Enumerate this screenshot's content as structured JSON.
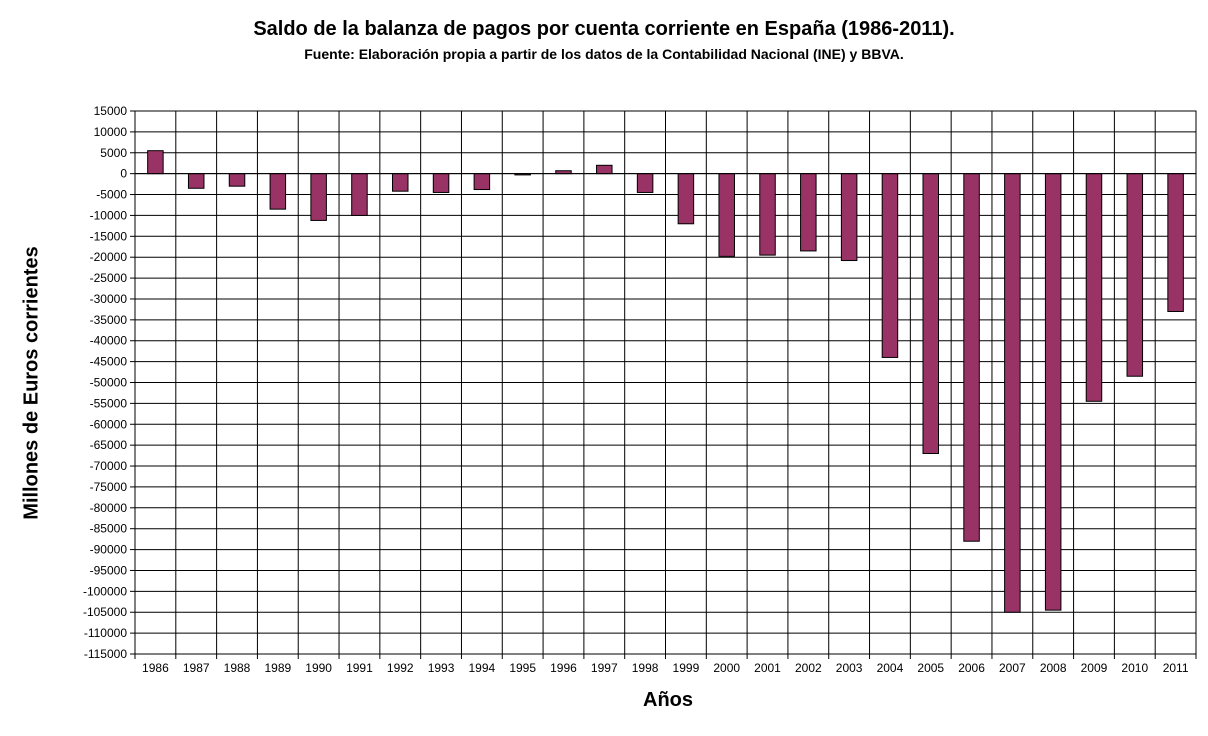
{
  "chart_data": {
    "type": "bar",
    "title": "Saldo de la balanza de pagos por cuenta corriente en España (1986-2011).",
    "subtitle": "Fuente: Elaboración propia a partir de los datos de la Contabilidad Nacional (INE) y BBVA.",
    "xlabel": "Años",
    "ylabel": "Millones de Euros corrientes",
    "ylim": [
      -115000,
      15000
    ],
    "ytick_step": 5000,
    "grid": true,
    "legend": "none",
    "bar_color": "#993366",
    "categories": [
      "1986",
      "1987",
      "1988",
      "1989",
      "1990",
      "1991",
      "1992",
      "1993",
      "1994",
      "1995",
      "1996",
      "1997",
      "1998",
      "1999",
      "2000",
      "2001",
      "2002",
      "2003",
      "2004",
      "2005",
      "2006",
      "2007",
      "2008",
      "2009",
      "2010",
      "2011"
    ],
    "values": [
      5500,
      -3500,
      -3000,
      -8500,
      -11200,
      -10000,
      -4200,
      -4500,
      -3800,
      -300,
      700,
      2000,
      -4500,
      -12000,
      -19800,
      -19500,
      -18500,
      -20800,
      -44000,
      -67000,
      -88000,
      -105000,
      -104500,
      -54500,
      -48500,
      -33000
    ]
  }
}
